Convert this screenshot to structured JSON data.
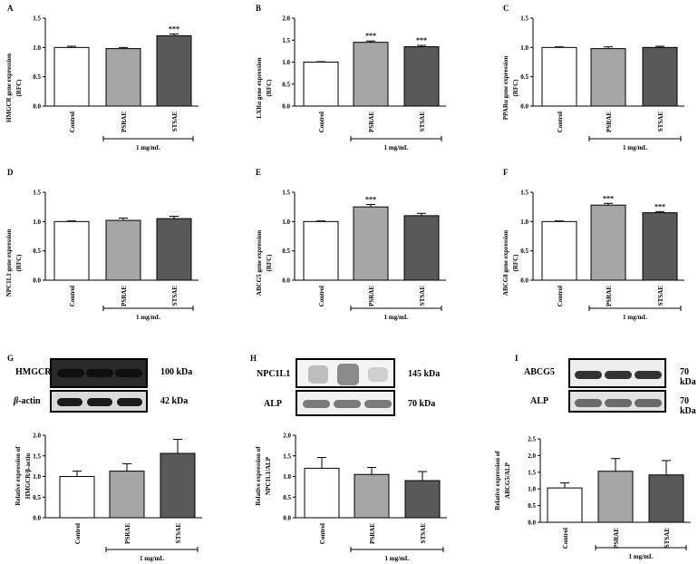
{
  "chart_data": [
    {
      "id": "A",
      "type": "bar",
      "panel_letter": "A",
      "ylabel": [
        "HMGCR gene expression",
        "(RFC)"
      ],
      "ylim": [
        0,
        1.5
      ],
      "yticks": [
        "0.0",
        "0.5",
        "1.0",
        "1.5"
      ],
      "categories": [
        "Control",
        "PSRAE",
        "STSAE"
      ],
      "values": [
        1.0,
        0.98,
        1.2
      ],
      "errors": [
        0.02,
        0.02,
        0.03
      ],
      "significance": [
        "",
        "",
        "***"
      ],
      "bracket_label": "1 mg/mL"
    },
    {
      "id": "B",
      "type": "bar",
      "panel_letter": "B",
      "ylabel": [
        "LXRα gene expression",
        "(RFC)"
      ],
      "ylim": [
        0,
        2.0
      ],
      "yticks": [
        "0.0",
        "0.5",
        "1.0",
        "1.5",
        "2.0"
      ],
      "categories": [
        "Control",
        "PSRAE",
        "STSAE"
      ],
      "values": [
        1.0,
        1.45,
        1.35
      ],
      "errors": [
        0.01,
        0.03,
        0.03
      ],
      "significance": [
        "",
        "***",
        "***"
      ],
      "bracket_label": "1 mg/mL"
    },
    {
      "id": "C",
      "type": "bar",
      "panel_letter": "C",
      "ylabel": [
        "PPARα gene expression",
        "(RFC)"
      ],
      "ylim": [
        0,
        1.5
      ],
      "yticks": [
        "0.0",
        "0.5",
        "1.0",
        "1.5"
      ],
      "categories": [
        "Control",
        "PSRAE",
        "STSAE"
      ],
      "values": [
        1.0,
        0.98,
        1.0
      ],
      "errors": [
        0.01,
        0.03,
        0.02
      ],
      "significance": [
        "",
        "",
        ""
      ],
      "bracket_label": "1 mg/mL"
    },
    {
      "id": "D",
      "type": "bar",
      "panel_letter": "D",
      "ylabel": [
        "NPC1L1 gene expression",
        "(RFC)"
      ],
      "ylim": [
        0,
        1.5
      ],
      "yticks": [
        "0.0",
        "0.5",
        "1.0",
        "1.5"
      ],
      "categories": [
        "Control",
        "PSRAE",
        "STSAE"
      ],
      "values": [
        1.0,
        1.02,
        1.05
      ],
      "errors": [
        0.01,
        0.04,
        0.04
      ],
      "significance": [
        "",
        "",
        ""
      ],
      "bracket_label": "1 mg/mL"
    },
    {
      "id": "E",
      "type": "bar",
      "panel_letter": "E",
      "ylabel": [
        "ABCG5 gene expression",
        "(RFC)"
      ],
      "ylim": [
        0,
        1.5
      ],
      "yticks": [
        "0.0",
        "0.5",
        "1.0",
        "1.5"
      ],
      "categories": [
        "Control",
        "PSRAE",
        "STSAE"
      ],
      "values": [
        1.0,
        1.25,
        1.1
      ],
      "errors": [
        0.01,
        0.04,
        0.04
      ],
      "significance": [
        "",
        "***",
        ""
      ],
      "bracket_label": "1 mg/mL"
    },
    {
      "id": "F",
      "type": "bar",
      "panel_letter": "F",
      "ylabel": [
        "ABCG8 gene expression",
        "(RFC)"
      ],
      "ylim": [
        0,
        1.5
      ],
      "yticks": [
        "0.0",
        "0.5",
        "1.0",
        "1.5"
      ],
      "categories": [
        "Control",
        "PSRAE",
        "STSAE"
      ],
      "values": [
        1.0,
        1.28,
        1.15
      ],
      "errors": [
        0.01,
        0.03,
        0.02
      ],
      "significance": [
        "",
        "***",
        "***"
      ],
      "bracket_label": "1 mg/mL"
    },
    {
      "id": "G",
      "type": "bar",
      "panel_letter": "G",
      "ylabel": [
        "Relative expression of",
        "HMGCR/β-actin"
      ],
      "ylim": [
        0,
        2.0
      ],
      "yticks": [
        "0.0",
        "0.5",
        "1.0",
        "1.5",
        "2.0"
      ],
      "categories": [
        "Control",
        "PSRAE",
        "STSAE"
      ],
      "values": [
        1.0,
        1.13,
        1.56
      ],
      "errors": [
        0.13,
        0.18,
        0.34
      ],
      "significance": [
        "",
        "",
        ""
      ],
      "bracket_label": "1 mg/mL"
    },
    {
      "id": "H",
      "type": "bar",
      "panel_letter": "H",
      "ylabel": [
        "Relative expression of",
        "NPC1L1/ALP"
      ],
      "ylim": [
        0,
        2.0
      ],
      "yticks": [
        "0.0",
        "0.5",
        "1.0",
        "1.5",
        "2.0"
      ],
      "categories": [
        "Control",
        "PSRAE",
        "STSAE"
      ],
      "values": [
        1.2,
        1.05,
        0.9
      ],
      "errors": [
        0.26,
        0.17,
        0.22
      ],
      "significance": [
        "",
        "",
        ""
      ],
      "bracket_label": "1 mg/mL"
    },
    {
      "id": "I",
      "type": "bar",
      "panel_letter": "I",
      "ylabel": [
        "Relative expression of",
        "ABCG5/ALP"
      ],
      "ylim": [
        0,
        2.5
      ],
      "yticks": [
        "0.0",
        "0.5",
        "1.0",
        "1.5",
        "2.0",
        "2.5"
      ],
      "categories": [
        "Control",
        "PSRAE",
        "STSAE"
      ],
      "values": [
        1.03,
        1.53,
        1.42
      ],
      "errors": [
        0.15,
        0.38,
        0.43
      ],
      "significance": [
        "",
        "",
        ""
      ],
      "bracket_label": "1 mg/mL"
    }
  ],
  "bar_colors": [
    "#ffffff",
    "#a6a6a6",
    "#595959"
  ],
  "blots": {
    "G": {
      "row1_label": "HMGCR",
      "row1_size": "100 kDa",
      "row2_label_prefix": "β",
      "row2_label_rest": "-actin",
      "row2_size": "42 kDa"
    },
    "H": {
      "row1_label": "NPC1L1",
      "row1_size": "145 kDa",
      "row2_label": "ALP",
      "row2_size": "70 kDa"
    },
    "I": {
      "row1_label": "ABCG5",
      "row1_size": "70 kDa",
      "row2_label": "ALP",
      "row2_size": "70 kDa"
    }
  }
}
